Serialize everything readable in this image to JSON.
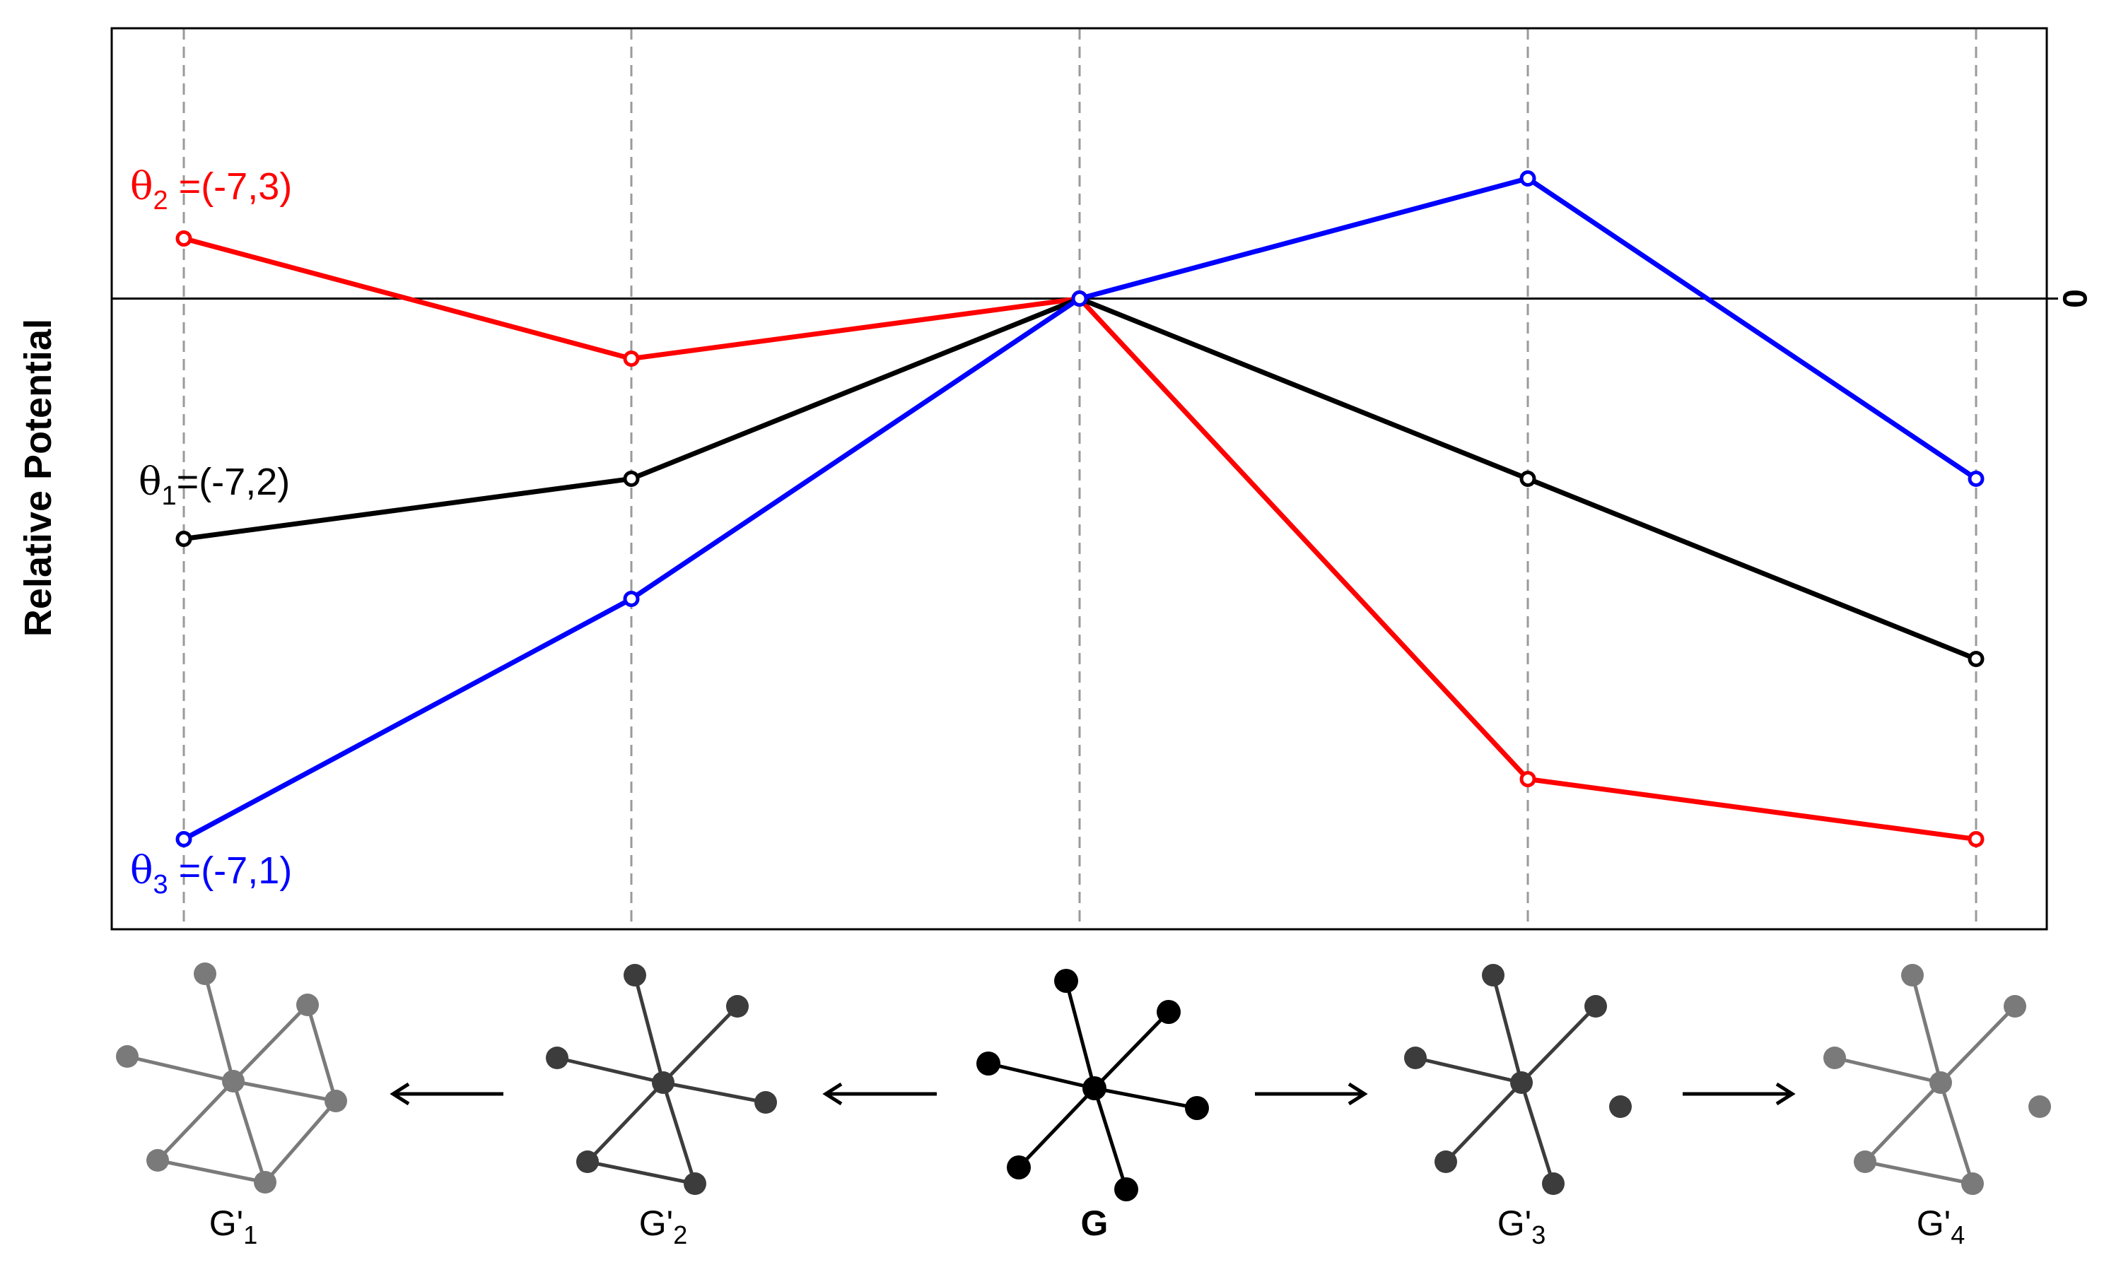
{
  "chart_data": {
    "type": "line",
    "ylabel": "Relative Potential",
    "categories": [
      "G'1",
      "G'2",
      "G",
      "G'3",
      "G'4"
    ],
    "zero_tick_label": "0",
    "ylim": [
      -10.5,
      4.5
    ],
    "grid": "vertical dashed lines at each category",
    "reference_line_y": 0,
    "series": [
      {
        "name": "(-7,3)",
        "symbol": "θ",
        "subscript": "2",
        "color": "#ff0000",
        "values": [
          1.0,
          -1.0,
          0.0,
          -8.0,
          -9.0
        ]
      },
      {
        "name": "(-7,2)",
        "symbol": "θ",
        "subscript": "1",
        "color": "#000000",
        "values": [
          -4.0,
          -3.0,
          0.0,
          -3.0,
          -6.0
        ]
      },
      {
        "name": "(-7,1)",
        "symbol": "θ",
        "subscript": "3",
        "color": "#0000ff",
        "values": [
          -9.0,
          -5.0,
          0.0,
          2.0,
          -3.0
        ]
      }
    ],
    "legend": "inline labels at left",
    "arrows": [
      "left",
      "left",
      "right",
      "right"
    ],
    "graph_icons": [
      {
        "label": "G'",
        "sub": "1",
        "bold": false,
        "color": "#7a7a7a"
      },
      {
        "label": "G'",
        "sub": "2",
        "bold": false,
        "color": "#3c3c3c"
      },
      {
        "label": "G",
        "sub": "",
        "bold": true,
        "color": "#000000"
      },
      {
        "label": "G'",
        "sub": "3",
        "bold": false,
        "color": "#3c3c3c"
      },
      {
        "label": "G'",
        "sub": "4",
        "bold": false,
        "color": "#7a7a7a"
      }
    ]
  }
}
